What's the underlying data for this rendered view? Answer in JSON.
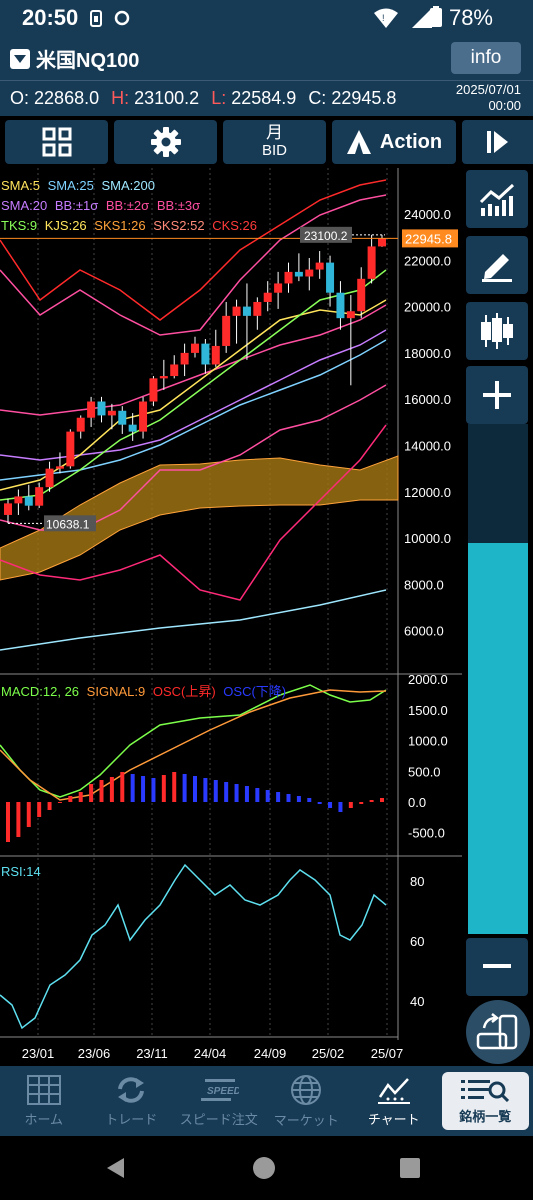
{
  "status": {
    "time": "20:50",
    "battery": "78%"
  },
  "header": {
    "symbol": "米国NQ100",
    "info_label": "info",
    "ohlc": {
      "o_label": "O:",
      "o": "22868.0",
      "h_label": "H:",
      "h": "23100.2",
      "l_label": "L:",
      "l": "22584.9",
      "c_label": "C:",
      "c": "22945.8"
    },
    "date": "2025/07/01",
    "time": "00:00"
  },
  "toolbar": {
    "period_top": "月",
    "period_bottom": "BID",
    "action_label": "Action"
  },
  "legend": {
    "line1": [
      "SMA:5",
      "SMA:25",
      "SMA:200"
    ],
    "line2": [
      "SMA:20",
      "BB:±1σ",
      "BB:±2σ",
      "BB:±3σ"
    ],
    "line3": [
      "TKS:9",
      "KJS:26",
      "SKS1:26",
      "SKS2:52",
      "CKS:26"
    ],
    "macd": [
      "MACD:12, 26",
      "SIGNAL:9",
      "OSC(上昇)",
      "OSC(下降)"
    ],
    "rsi": "RSI:14"
  },
  "colors": {
    "bg": "#000000",
    "panel": "#173a55",
    "up": "#ff2a2a",
    "down": "#2fb6d8",
    "accent": "#1fb5c9",
    "price_tag": "#ff8a1f"
  },
  "chart_data": {
    "type": "candlestick",
    "main_axis": [
      "24000.0",
      "22000.0",
      "20000.0",
      "18000.0",
      "16000.0",
      "14000.0",
      "12000.0",
      "10000.0",
      "8000.0",
      "6000.0"
    ],
    "macd_axis": [
      "2000.0",
      "1500.0",
      "1000.0",
      "500.0",
      "0.0",
      "-500.0"
    ],
    "rsi_axis": [
      "80",
      "60",
      "40"
    ],
    "x_labels": [
      "23/01",
      "23/06",
      "23/11",
      "24/04",
      "24/09",
      "25/02",
      "25/07"
    ],
    "high_label": "23100.2",
    "last_price": "22945.8",
    "low_label": "10638.1",
    "candles": [
      {
        "o": 11000,
        "h": 11700,
        "l": 10640,
        "c": 11500
      },
      {
        "o": 11500,
        "h": 12100,
        "l": 11000,
        "c": 11800
      },
      {
        "o": 11800,
        "h": 12300,
        "l": 11200,
        "c": 11400
      },
      {
        "o": 11400,
        "h": 12400,
        "l": 11300,
        "c": 12200
      },
      {
        "o": 12200,
        "h": 13300,
        "l": 12000,
        "c": 13000
      },
      {
        "o": 13000,
        "h": 13700,
        "l": 12800,
        "c": 13100
      },
      {
        "o": 13100,
        "h": 14700,
        "l": 13000,
        "c": 14600
      },
      {
        "o": 14600,
        "h": 15300,
        "l": 14300,
        "c": 15200
      },
      {
        "o": 15200,
        "h": 16100,
        "l": 14800,
        "c": 15900
      },
      {
        "o": 15900,
        "h": 16100,
        "l": 15000,
        "c": 15300
      },
      {
        "o": 15300,
        "h": 15800,
        "l": 14700,
        "c": 15500
      },
      {
        "o": 15500,
        "h": 15700,
        "l": 14500,
        "c": 14900
      },
      {
        "o": 14900,
        "h": 15400,
        "l": 14200,
        "c": 14600
      },
      {
        "o": 14600,
        "h": 16100,
        "l": 14300,
        "c": 15900
      },
      {
        "o": 15900,
        "h": 17000,
        "l": 15700,
        "c": 16900
      },
      {
        "o": 16900,
        "h": 17700,
        "l": 16400,
        "c": 17000
      },
      {
        "o": 17000,
        "h": 17900,
        "l": 16900,
        "c": 17500
      },
      {
        "o": 17500,
        "h": 18400,
        "l": 17000,
        "c": 18000
      },
      {
        "o": 18000,
        "h": 18700,
        "l": 17800,
        "c": 18400
      },
      {
        "o": 18400,
        "h": 18600,
        "l": 17100,
        "c": 17500
      },
      {
        "o": 17500,
        "h": 19000,
        "l": 17400,
        "c": 18300
      },
      {
        "o": 18300,
        "h": 20200,
        "l": 18000,
        "c": 19600
      },
      {
        "o": 19600,
        "h": 20300,
        "l": 18400,
        "c": 20000
      },
      {
        "o": 20000,
        "h": 21000,
        "l": 17700,
        "c": 19600
      },
      {
        "o": 19600,
        "h": 20400,
        "l": 19000,
        "c": 20200
      },
      {
        "o": 20200,
        "h": 21100,
        "l": 19800,
        "c": 20600
      },
      {
        "o": 20600,
        "h": 21500,
        "l": 19900,
        "c": 21000
      },
      {
        "o": 21000,
        "h": 21900,
        "l": 20600,
        "c": 21500
      },
      {
        "o": 21500,
        "h": 22300,
        "l": 21100,
        "c": 21300
      },
      {
        "o": 21300,
        "h": 22100,
        "l": 20700,
        "c": 21600
      },
      {
        "o": 21600,
        "h": 22400,
        "l": 21200,
        "c": 21900
      },
      {
        "o": 21900,
        "h": 22200,
        "l": 20000,
        "c": 20600
      },
      {
        "o": 20600,
        "h": 21100,
        "l": 19000,
        "c": 19500
      },
      {
        "o": 19500,
        "h": 20500,
        "l": 16600,
        "c": 19800
      },
      {
        "o": 19800,
        "h": 21700,
        "l": 19500,
        "c": 21200
      },
      {
        "o": 21200,
        "h": 23100,
        "l": 21000,
        "c": 22600
      },
      {
        "o": 22600,
        "h": 23100,
        "l": 22580,
        "c": 22950
      }
    ]
  },
  "nav": {
    "items": [
      {
        "label": "ホーム"
      },
      {
        "label": "トレード"
      },
      {
        "label": "スピード注文"
      },
      {
        "label": "マーケット"
      },
      {
        "label": "チャート"
      },
      {
        "label": "銘柄一覧"
      }
    ]
  }
}
